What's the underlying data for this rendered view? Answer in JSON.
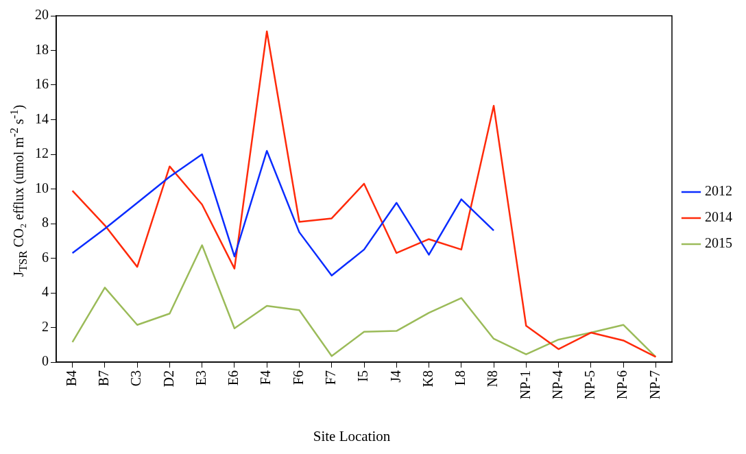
{
  "chart_data": {
    "type": "line",
    "xlabel": "Site Location",
    "ylabel": "J$_{TSR}$ CO₂ efflux  (umol m$^{-2}$ s$^{-1}$)",
    "categories": [
      "B4",
      "B7",
      "C3",
      "D2",
      "E3",
      "E6",
      "F4",
      "F6",
      "F7",
      "I5",
      "J4",
      "K8",
      "L8",
      "N8",
      "NP-1",
      "NP-4",
      "NP-5",
      "NP-6",
      "NP-7"
    ],
    "series": [
      {
        "name": "2012",
        "color": "#0a2cff",
        "values": [
          6.3,
          7.7,
          9.2,
          10.7,
          12.0,
          6.1,
          12.2,
          7.5,
          5.0,
          6.5,
          9.2,
          6.2,
          9.4,
          7.6,
          null,
          null,
          null,
          null,
          null
        ]
      },
      {
        "name": "2014",
        "color": "#ff2a0a",
        "values": [
          9.9,
          7.9,
          5.5,
          11.3,
          9.1,
          5.4,
          19.1,
          8.1,
          8.3,
          10.3,
          6.3,
          7.1,
          6.5,
          14.8,
          2.1,
          0.75,
          1.7,
          1.25,
          0.3
        ]
      },
      {
        "name": "2015",
        "color": "#9bbb59",
        "values": [
          1.15,
          4.3,
          2.15,
          2.8,
          6.75,
          1.95,
          3.25,
          3.0,
          0.35,
          1.75,
          1.8,
          2.85,
          3.7,
          1.35,
          0.45,
          1.3,
          1.7,
          2.15,
          0.3
        ]
      }
    ],
    "ylim": [
      0,
      20
    ],
    "yticks": [
      0,
      2,
      4,
      6,
      8,
      10,
      12,
      14,
      16,
      18,
      20
    ],
    "grid": false,
    "legend": "right",
    "marker": "none",
    "line_style": "solid"
  }
}
